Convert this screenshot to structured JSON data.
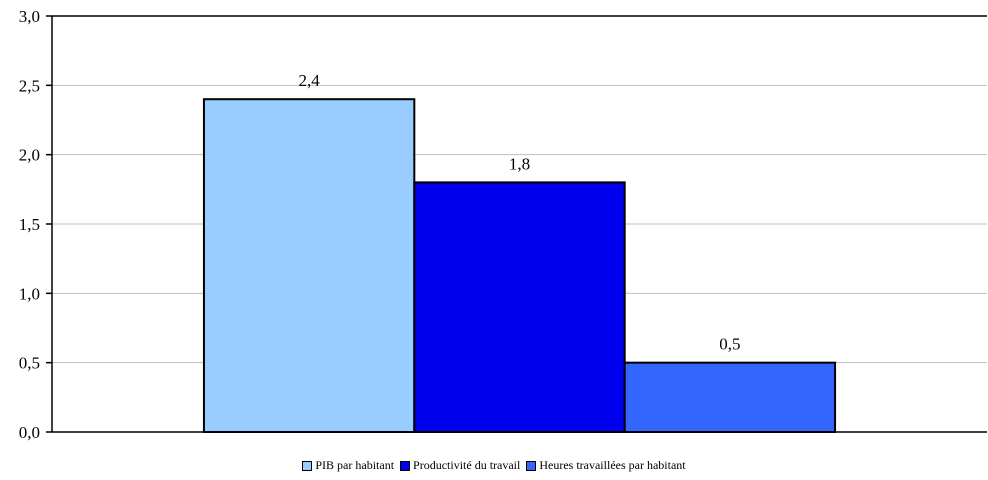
{
  "chart_data": {
    "type": "bar",
    "categories": [
      ""
    ],
    "series": [
      {
        "name": "PIB par habitant",
        "values": [
          2.4
        ],
        "color": "#99ccff",
        "label": "2,4"
      },
      {
        "name": "Productivité du travail",
        "values": [
          1.8
        ],
        "color": "#0000ee",
        "label": "1,8"
      },
      {
        "name": "Heures travaillées par habitant",
        "values": [
          0.5
        ],
        "color": "#3366ff",
        "label": "0,5"
      }
    ],
    "title": "",
    "xlabel": "",
    "ylabel": "",
    "ylim": [
      0,
      3
    ],
    "yticks": [
      {
        "value": 0,
        "label": "0,0"
      },
      {
        "value": 0.5,
        "label": "0,5"
      },
      {
        "value": 1,
        "label": "1,0"
      },
      {
        "value": 1.5,
        "label": "1,5"
      },
      {
        "value": 2,
        "label": "2,0"
      },
      {
        "value": 2.5,
        "label": "2,5"
      },
      {
        "value": 3,
        "label": "3,0"
      }
    ],
    "grid": true,
    "legend_position": "bottom"
  }
}
